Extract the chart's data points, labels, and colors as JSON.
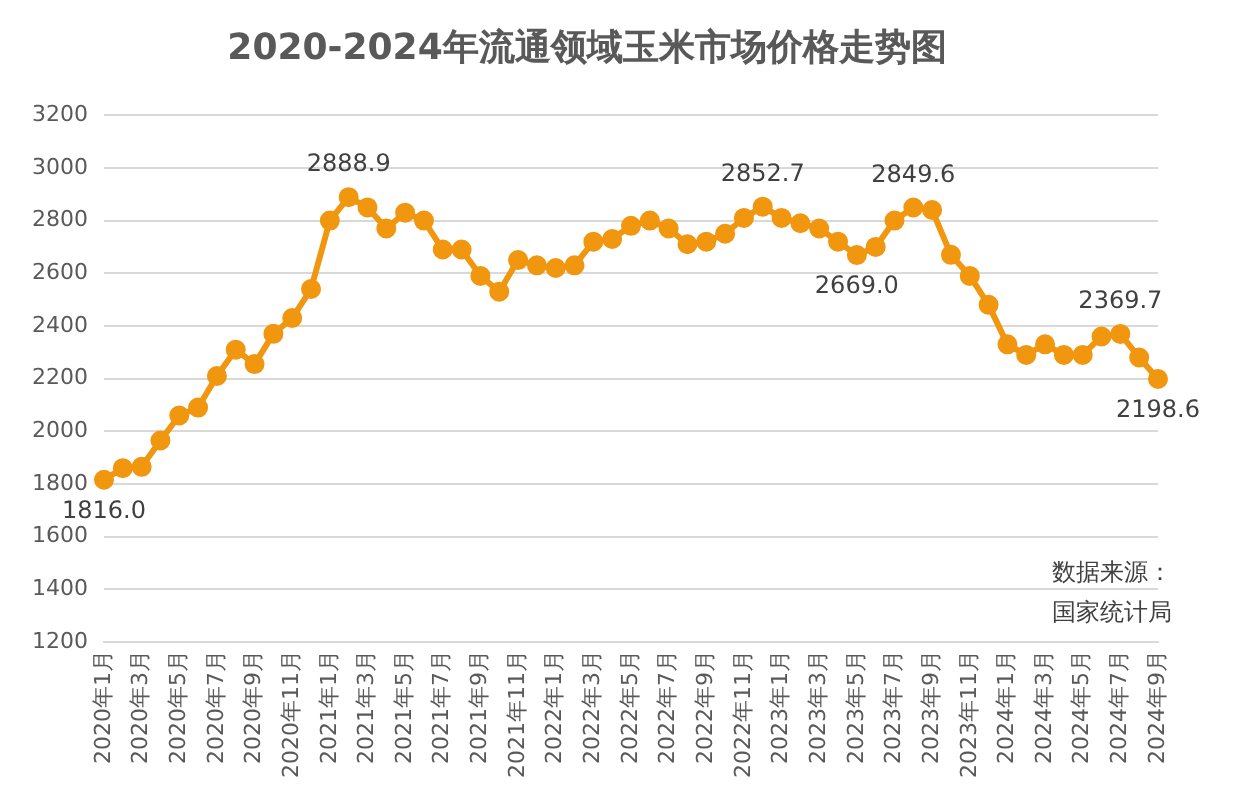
{
  "chart_data": {
    "type": "line",
    "title": "2020-2024年流通领域玉米市场价格走势图",
    "categories": [
      "2020年1月",
      null,
      "2020年3月",
      null,
      "2020年5月",
      null,
      "2020年7月",
      null,
      "2020年9月",
      null,
      "2020年11月",
      null,
      "2021年1月",
      null,
      "2021年3月",
      null,
      "2021年5月",
      null,
      "2021年7月",
      null,
      "2021年9月",
      null,
      "2021年11月",
      null,
      "2022年1月",
      null,
      "2022年3月",
      null,
      "2022年5月",
      null,
      "2022年7月",
      null,
      "2022年9月",
      null,
      "2022年11月",
      null,
      "2023年1月",
      null,
      "2023年3月",
      null,
      "2023年5月",
      null,
      "2023年7月",
      null,
      "2023年9月",
      null,
      "2023年11月",
      null,
      "2024年1月",
      null,
      "2024年3月",
      null,
      "2024年5月",
      null,
      "2024年7月",
      null,
      "2024年9月"
    ],
    "series": [
      {
        "color": "#f0960f",
        "values": [
          1816.0,
          1860,
          1865,
          1965,
          2060,
          2090,
          2210,
          2310,
          2255,
          2370,
          2430,
          2540,
          2800,
          2888.9,
          2850,
          2770,
          2830,
          2800,
          2690,
          2690,
          2590,
          2530,
          2650,
          2630,
          2620,
          2630,
          2720,
          2730,
          2780,
          2800,
          2770,
          2710,
          2720,
          2750,
          2810,
          2852.7,
          2810,
          2790,
          2770,
          2720,
          2669.0,
          2700,
          2800,
          2849.6,
          2840,
          2670,
          2590,
          2480,
          2330,
          2290,
          2330,
          2290,
          2290,
          2360,
          2369.7,
          2280,
          2198.6
        ],
        "value_labels": [
          "1816.0",
          null,
          null,
          null,
          null,
          null,
          null,
          null,
          null,
          null,
          null,
          null,
          null,
          "2888.9",
          null,
          null,
          null,
          null,
          null,
          null,
          null,
          null,
          null,
          null,
          null,
          null,
          null,
          null,
          null,
          null,
          null,
          null,
          null,
          null,
          null,
          "2852.7",
          null,
          null,
          null,
          null,
          "2669.0",
          null,
          null,
          "2849.6",
          null,
          null,
          null,
          null,
          null,
          null,
          null,
          null,
          null,
          null,
          "2369.7",
          null,
          "2198.6"
        ]
      }
    ],
    "ylim": [
      1200,
      3200
    ],
    "yticks": [
      1200,
      1400,
      1600,
      1800,
      2000,
      2200,
      2400,
      2600,
      2800,
      3000,
      3200
    ],
    "grid": "y",
    "legend": false,
    "marker": "circle",
    "line_style": "solid",
    "annotations": [
      "数据来源：",
      "国家统计局"
    ]
  }
}
